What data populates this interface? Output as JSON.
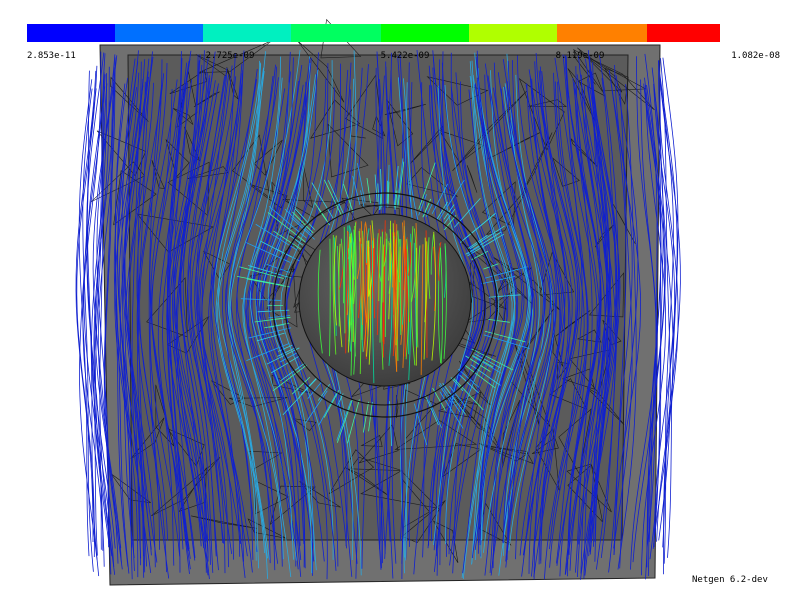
{
  "colorbar": {
    "labels": [
      "2.853e-11",
      "2.725e-09",
      "5.422e-09",
      "8.119e-09",
      "1.082e-08"
    ]
  },
  "footer": {
    "version": "Netgen 6.2-dev"
  }
}
